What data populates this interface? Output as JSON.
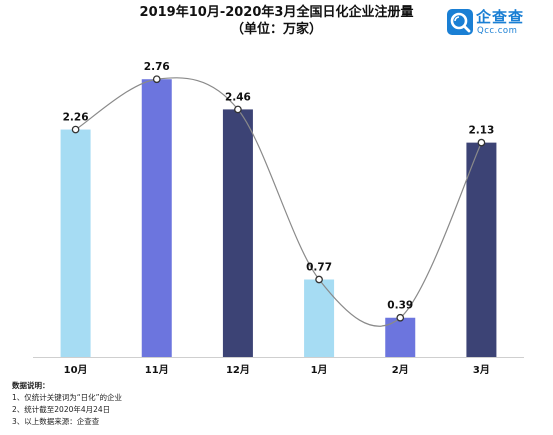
{
  "title_line1": "2019年10月-2020年3月全国日化企业注册量",
  "title_line2": "（单位：万家）",
  "logo": {
    "name": "企查查",
    "domain": "Qcc.com",
    "icon": "qcc-magnifier-logo-icon",
    "color": "#1a7fd4"
  },
  "notes": {
    "heading": "数据说明：",
    "items": [
      "1、仅统计关键词为“日化”的企业",
      "2、统计截至2020年4月24日",
      "3、以上数据来源：企查查"
    ]
  },
  "chart_data": {
    "type": "bar",
    "categories": [
      "10月",
      "11月",
      "12月",
      "1月",
      "2月",
      "3月"
    ],
    "values": [
      2.26,
      2.76,
      2.46,
      0.77,
      0.39,
      2.13
    ],
    "bar_colors": [
      "#a6dcf3",
      "#6c75de",
      "#3c4375",
      "#a6dcf3",
      "#6c75de",
      "#3c4375"
    ],
    "overlay_line": {
      "type": "smooth-line",
      "color": "#8a8a8a",
      "marker": "circle"
    },
    "ylim": [
      0,
      3.1
    ],
    "grid": false,
    "title": "2019年10月-2020年3月全国日化企业注册量",
    "xlabel": "",
    "ylabel": ""
  }
}
